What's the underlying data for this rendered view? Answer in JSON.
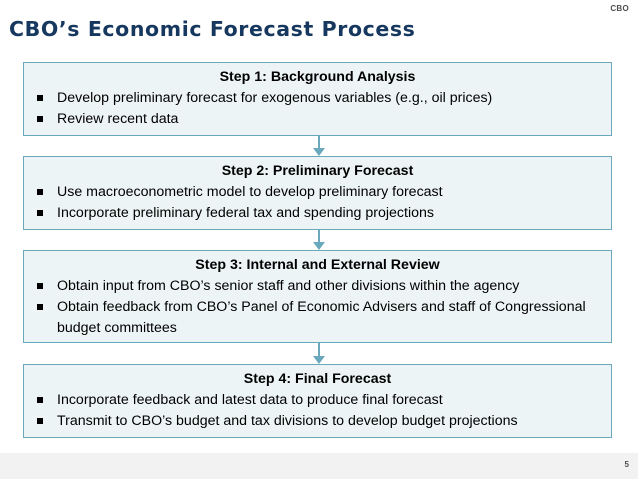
{
  "logo": "CBO",
  "title": "CBO’s Economic Forecast Process",
  "steps": [
    {
      "title": "Step 1: Background Analysis",
      "bullets": [
        "Develop preliminary forecast for exogenous variables (e.g., oil prices)",
        "Review recent data"
      ]
    },
    {
      "title": "Step 2: Preliminary Forecast",
      "bullets": [
        "Use macroeconometric model to develop preliminary forecast",
        "Incorporate preliminary federal tax and spending projections"
      ]
    },
    {
      "title": "Step 3: Internal and External Review",
      "bullets": [
        "Obtain input from CBO’s senior staff and other divisions within the agency",
        "Obtain feedback from CBO’s Panel of Economic Advisers and staff of Congressional budget committees"
      ]
    },
    {
      "title": "Step 4: Final Forecast",
      "bullets": [
        "Incorporate feedback and latest data to produce final forecast",
        "Transmit to CBO’s budget and tax divisions to develop budget projections"
      ]
    }
  ],
  "page_number": "5",
  "colors": {
    "title": "#16375e",
    "box_border": "#6aa9bd",
    "box_fill": "#edf4f5",
    "arrow": "#6aa9bd",
    "footer": "#f2f2f2"
  }
}
